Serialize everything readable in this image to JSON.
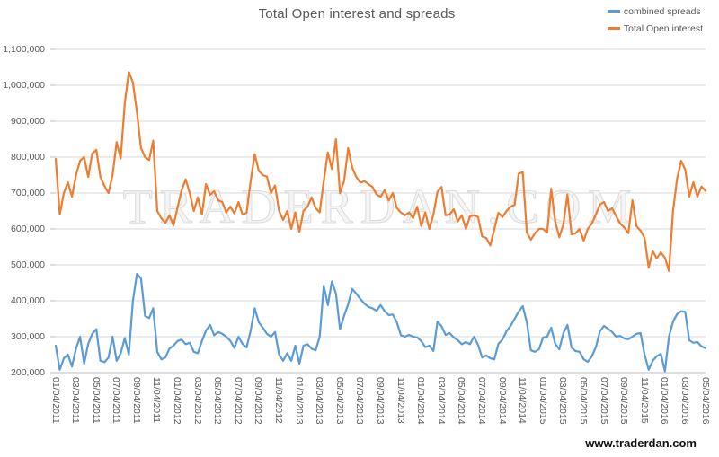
{
  "title": "Total Open interest and spreads",
  "watermark": "TRADERDAN.COM",
  "footer_link": "www.traderdan.com",
  "colors": {
    "accent_blue": "#5B9BD5",
    "accent_orange": "#ED7D31",
    "text_gray": "#595959",
    "gridline": "#D9D9D9",
    "axis_line": "#BFBFBF",
    "watermark_outline": "#DCDCDC",
    "watermark_fill": "#F5F5F5"
  },
  "chart_data": {
    "type": "line",
    "title": "Total Open interest and spreads",
    "xlabel": "",
    "ylabel": "",
    "grid": "horizontal",
    "legend_position": "top-right",
    "y_axis": {
      "min": 200000,
      "max": 1100000,
      "step": 100000,
      "tick_labels": [
        "200,000",
        "300,000",
        "400,000",
        "500,000",
        "600,000",
        "700,000",
        "800,000",
        "900,000",
        "1,000,000",
        "1,100,000"
      ]
    },
    "x_axis": {
      "tick_labels": [
        "01/04/2011",
        "03/04/2011",
        "05/04/2011",
        "07/04/2011",
        "09/04/2011",
        "11/04/2011",
        "01/04/2012",
        "03/04/2012",
        "05/04/2012",
        "07/04/2012",
        "09/04/2012",
        "11/04/2012",
        "01/04/2013",
        "03/04/2013",
        "05/04/2013",
        "07/04/2013",
        "09/04/2013",
        "11/04/2013",
        "01/04/2014",
        "03/04/2014",
        "05/04/2014",
        "07/04/2014",
        "09/04/2014",
        "11/04/2014",
        "01/04/2015",
        "03/04/2015",
        "05/04/2015",
        "07/04/2015",
        "09/04/2015",
        "11/04/2015",
        "01/04/2016",
        "03/04/2016",
        "05/04/2016"
      ],
      "range_note": "weekly data from 01/04/2011 to 05/04/2016"
    },
    "series": [
      {
        "name": "combined spreads",
        "color": "#5B9BD5",
        "values": [
          275000,
          208000,
          240000,
          250000,
          217000,
          267000,
          300000,
          225000,
          280000,
          308000,
          321000,
          233000,
          229000,
          242000,
          300000,
          233000,
          254000,
          296000,
          250000,
          400000,
          475000,
          462000,
          358000,
          352000,
          379000,
          258000,
          237000,
          242000,
          267000,
          275000,
          288000,
          292000,
          279000,
          283000,
          258000,
          254000,
          288000,
          317000,
          333000,
          304000,
          313000,
          308000,
          300000,
          288000,
          269000,
          300000,
          280000,
          270000,
          317000,
          379000,
          340000,
          325000,
          308000,
          300000,
          313000,
          250000,
          233000,
          254000,
          233000,
          275000,
          225000,
          275000,
          279000,
          267000,
          262000,
          300000,
          442000,
          388000,
          454000,
          420000,
          321000,
          358000,
          390000,
          433000,
          420000,
          405000,
          392000,
          383000,
          379000,
          372000,
          388000,
          371000,
          360000,
          362000,
          340000,
          304000,
          300000,
          305000,
          300000,
          298000,
          288000,
          271000,
          275000,
          260000,
          342000,
          329000,
          305000,
          310000,
          298000,
          290000,
          279000,
          285000,
          279000,
          300000,
          277000,
          242000,
          248000,
          240000,
          237000,
          280000,
          292000,
          315000,
          330000,
          350000,
          370000,
          385000,
          340000,
          262000,
          258000,
          265000,
          298000,
          300000,
          325000,
          280000,
          265000,
          310000,
          333000,
          270000,
          260000,
          258000,
          237000,
          230000,
          245000,
          271000,
          315000,
          330000,
          322000,
          313000,
          300000,
          302000,
          295000,
          293000,
          300000,
          308000,
          310000,
          250000,
          208000,
          233000,
          246000,
          252000,
          204000,
          300000,
          342000,
          363000,
          371000,
          369000,
          290000,
          283000,
          285000,
          273000,
          268000
        ]
      },
      {
        "name": "Total Open interest",
        "color": "#ED7D31",
        "values": [
          795000,
          640000,
          700000,
          730000,
          690000,
          750000,
          790000,
          800000,
          745000,
          810000,
          820000,
          745000,
          720000,
          700000,
          750000,
          842000,
          796000,
          950000,
          1037000,
          1008000,
          925000,
          825000,
          800000,
          792000,
          846000,
          650000,
          630000,
          617000,
          638000,
          610000,
          660000,
          708000,
          738000,
          700000,
          650000,
          688000,
          640000,
          725000,
          695000,
          705000,
          680000,
          675000,
          646000,
          662000,
          643000,
          675000,
          640000,
          645000,
          733000,
          808000,
          762000,
          750000,
          746000,
          700000,
          721000,
          650000,
          625000,
          650000,
          600000,
          646000,
          592000,
          650000,
          662000,
          688000,
          658000,
          646000,
          733000,
          813000,
          767000,
          850000,
          700000,
          733000,
          825000,
          771000,
          745000,
          729000,
          733000,
          725000,
          717000,
          696000,
          690000,
          708000,
          679000,
          700000,
          658000,
          646000,
          638000,
          646000,
          630000,
          662000,
          608000,
          646000,
          600000,
          640000,
          704000,
          717000,
          638000,
          640000,
          655000,
          621000,
          638000,
          600000,
          635000,
          638000,
          633000,
          579000,
          575000,
          554000,
          600000,
          645000,
          633000,
          650000,
          662000,
          667000,
          754000,
          758000,
          590000,
          570000,
          588000,
          600000,
          600000,
          590000,
          712000,
          620000,
          577000,
          613000,
          696000,
          585000,
          588000,
          600000,
          567000,
          600000,
          615000,
          640000,
          668000,
          675000,
          650000,
          658000,
          635000,
          615000,
          604000,
          588000,
          680000,
          608000,
          595000,
          575000,
          492000,
          538000,
          518000,
          535000,
          520000,
          483000,
          650000,
          740000,
          790000,
          765000,
          690000,
          730000,
          690000,
          718000,
          706000
        ]
      }
    ]
  }
}
